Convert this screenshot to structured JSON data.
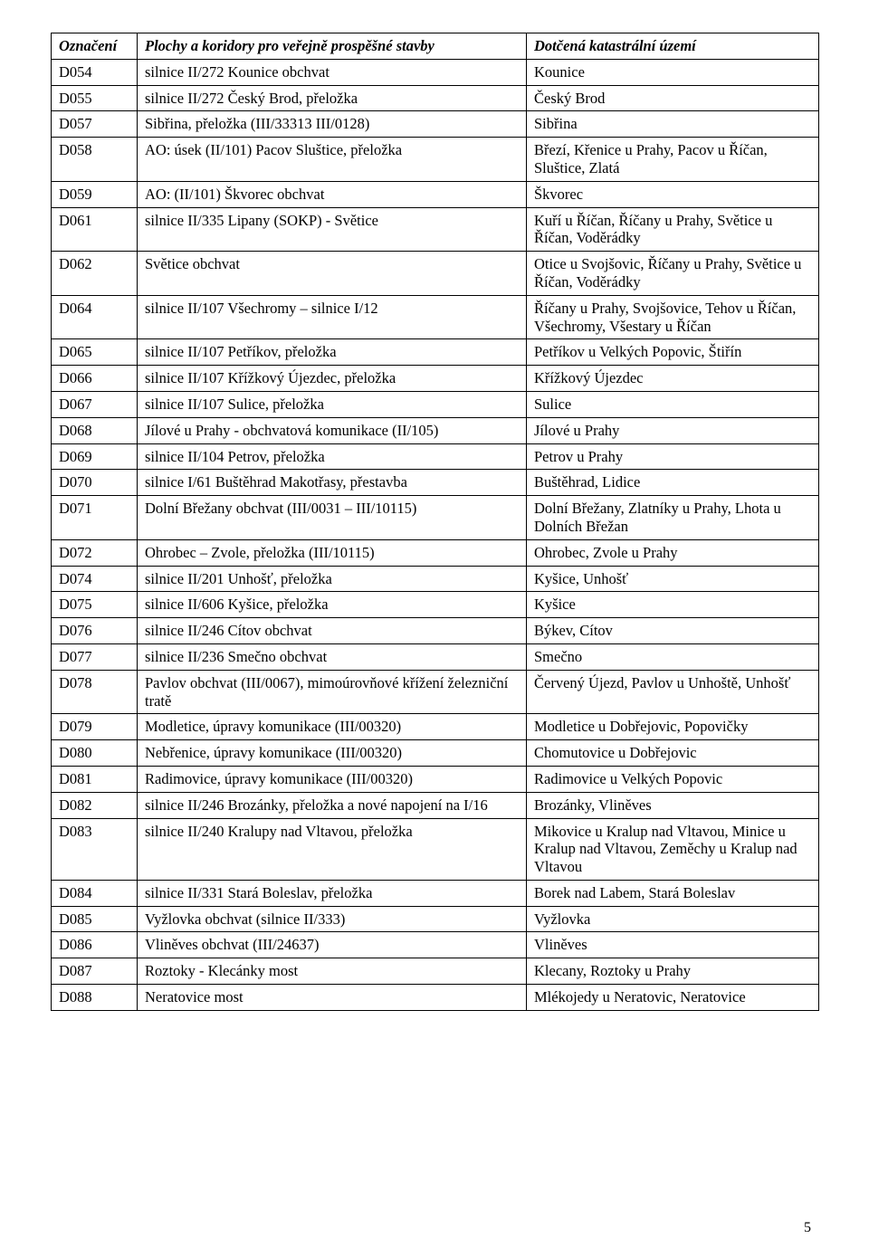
{
  "headers": {
    "col1": "Označení",
    "col2": "Plochy a koridory pro veřejně prospěšné stavby",
    "col3": "Dotčená katastrální území"
  },
  "rows": [
    {
      "id": "D054",
      "desc": "silnice II/272 Kounice obchvat",
      "area": "Kounice"
    },
    {
      "id": "D055",
      "desc": "silnice II/272 Český Brod, přeložka",
      "area": "Český Brod"
    },
    {
      "id": "D057",
      "desc": "Sibřina, přeložka (III/33313 III/0128)",
      "area": "Sibřina"
    },
    {
      "id": "D058",
      "desc": "AO: úsek (II/101) Pacov Sluštice, přeložka",
      "area": "Březí, Křenice u Prahy, Pacov u Říčan, Sluštice, Zlatá"
    },
    {
      "id": "D059",
      "desc": "AO: (II/101) Škvorec obchvat",
      "area": "Škvorec"
    },
    {
      "id": "D061",
      "desc": "silnice II/335 Lipany (SOKP) - Světice",
      "area": "Kuří u Říčan, Říčany u Prahy, Světice u Říčan, Voděrádky"
    },
    {
      "id": "D062",
      "desc": "Světice obchvat",
      "area": "Otice u Svojšovic, Říčany u Prahy, Světice u Říčan, Voděrádky"
    },
    {
      "id": "D064",
      "desc": "silnice II/107 Všechromy – silnice I/12",
      "area": "Říčany u Prahy, Svojšovice, Tehov u Říčan, Všechromy, Všestary u Říčan"
    },
    {
      "id": "D065",
      "desc": "silnice II/107 Petříkov, přeložka",
      "area": "Petříkov u Velkých Popovic, Štiřín"
    },
    {
      "id": "D066",
      "desc": "silnice II/107 Křížkový Újezdec, přeložka",
      "area": "Křížkový Újezdec"
    },
    {
      "id": "D067",
      "desc": "silnice II/107 Sulice, přeložka",
      "area": "Sulice"
    },
    {
      "id": "D068",
      "desc": "Jílové u Prahy - obchvatová komunikace (II/105)",
      "area": "Jílové u Prahy"
    },
    {
      "id": "D069",
      "desc": "silnice II/104 Petrov, přeložka",
      "area": "Petrov u Prahy"
    },
    {
      "id": "D070",
      "desc": "silnice I/61 Buštěhrad Makotřasy, přestavba",
      "area": "Buštěhrad, Lidice"
    },
    {
      "id": "D071",
      "desc": "Dolní Břežany obchvat (III/0031 – III/10115)",
      "area": "Dolní Břežany, Zlatníky u Prahy, Lhota u Dolních Břežan"
    },
    {
      "id": "D072",
      "desc": "Ohrobec – Zvole, přeložka (III/10115)",
      "area": "Ohrobec, Zvole u Prahy"
    },
    {
      "id": "D074",
      "desc": "silnice II/201 Unhošť, přeložka",
      "area": "Kyšice, Unhošť"
    },
    {
      "id": "D075",
      "desc": "silnice II/606 Kyšice, přeložka",
      "area": "Kyšice"
    },
    {
      "id": "D076",
      "desc": "silnice II/246 Cítov obchvat",
      "area": "Býkev, Cítov"
    },
    {
      "id": "D077",
      "desc": "silnice II/236 Smečno obchvat",
      "area": "Smečno"
    },
    {
      "id": "D078",
      "desc": "Pavlov obchvat (III/0067), mimoúrovňové křížení železniční tratě",
      "area": "Červený Újezd, Pavlov u Unhoště, Unhošť"
    },
    {
      "id": "D079",
      "desc": "Modletice, úpravy komunikace (III/00320)",
      "area": "Modletice u Dobřejovic, Popovičky"
    },
    {
      "id": "D080",
      "desc": "Nebřenice, úpravy komunikace (III/00320)",
      "area": "Chomutovice u Dobřejovic"
    },
    {
      "id": "D081",
      "desc": "Radimovice, úpravy komunikace (III/00320)",
      "area": "Radimovice u Velkých Popovic"
    },
    {
      "id": "D082",
      "desc": "silnice II/246 Brozánky, přeložka a nové napojení na I/16",
      "area": "Brozánky, Vliněves"
    },
    {
      "id": "D083",
      "desc": "silnice II/240 Kralupy nad Vltavou, přeložka",
      "area": "Mikovice u Kralup nad Vltavou, Minice u Kralup nad Vltavou, Zeměchy u Kralup nad Vltavou"
    },
    {
      "id": "D084",
      "desc": "silnice II/331 Stará Boleslav, přeložka",
      "area": "Borek nad Labem, Stará Boleslav"
    },
    {
      "id": "D085",
      "desc": "Vyžlovka obchvat (silnice II/333)",
      "area": "Vyžlovka"
    },
    {
      "id": "D086",
      "desc": "Vliněves obchvat (III/24637)",
      "area": "Vliněves"
    },
    {
      "id": "D087",
      "desc": "Roztoky - Klecánky most",
      "area": "Klecany, Roztoky u Prahy"
    },
    {
      "id": "D088",
      "desc": "Neratovice most",
      "area": "Mlékojedy u Neratovic, Neratovice"
    }
  ],
  "pageNumber": "5"
}
